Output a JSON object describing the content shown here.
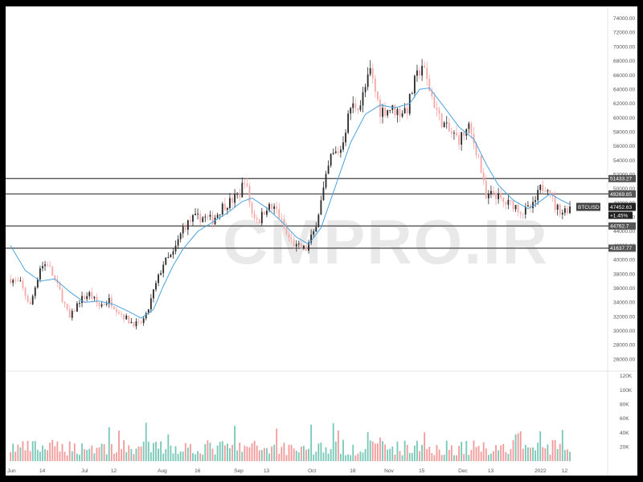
{
  "watermark": "CMPRO.IR",
  "chart_data": {
    "type": "candlestick",
    "symbol": "BTCUSD",
    "last_price": "47452.63",
    "change": "+1.45%",
    "price_ylim": [
      25000,
      75000
    ],
    "price_ticks": [
      "74000.00",
      "72000.00",
      "70000.00",
      "68000.00",
      "66000.00",
      "64000.00",
      "62000.00",
      "60000.00",
      "58000.00",
      "56000.00",
      "54000.00",
      "52000.00",
      "50000.00",
      "48000.00",
      "46000.00",
      "44000.00",
      "42000.00",
      "40000.00",
      "38000.00",
      "36000.00",
      "34000.00",
      "32000.00",
      "30000.00",
      "28000.00",
      "26000.00"
    ],
    "price_tick_values": [
      74000,
      72000,
      70000,
      68000,
      66000,
      64000,
      62000,
      60000,
      58000,
      56000,
      54000,
      52000,
      50000,
      48000,
      46000,
      44000,
      42000,
      40000,
      38000,
      36000,
      34000,
      32000,
      30000,
      28000,
      26000
    ],
    "volume_ylim": [
      0,
      120000
    ],
    "volume_ticks": [
      "120K",
      "100K",
      "80K",
      "60K",
      "40K",
      "20K"
    ],
    "volume_tick_values": [
      120000,
      100000,
      80000,
      60000,
      40000,
      20000
    ],
    "x_labels": [
      "Jun",
      "14",
      "Jul",
      "12",
      "Aug",
      "16",
      "Sep",
      "13",
      "Oct",
      "18",
      "Nov",
      "15",
      "Dec",
      "13",
      "2022",
      "12"
    ],
    "x_label_days": [
      0,
      13,
      30,
      42,
      61,
      76,
      92,
      104,
      122,
      139,
      153,
      167,
      183,
      195,
      214,
      225
    ],
    "horizontal_levels": [
      {
        "label": "51433.27",
        "value": 51433.27
      },
      {
        "label": "49269.85",
        "value": 49269.85
      },
      {
        "label": "44762.7",
        "value": 44762.7
      },
      {
        "label": "41637.77",
        "value": 41637.77
      }
    ],
    "colors": {
      "up": "#2b2b2b",
      "down": "#f4a9a9",
      "ma": "#4aa3df",
      "level": "#555555",
      "vol_up": "#79c8b8",
      "vol_down": "#f29b9b"
    },
    "close_series": [
      {
        "x": 0,
        "y": 37300
      },
      {
        "x": 4,
        "y": 36600
      },
      {
        "x": 8,
        "y": 33500
      },
      {
        "x": 12,
        "y": 39000
      },
      {
        "x": 15,
        "y": 39500
      },
      {
        "x": 20,
        "y": 35500
      },
      {
        "x": 24,
        "y": 31700
      },
      {
        "x": 28,
        "y": 34300
      },
      {
        "x": 32,
        "y": 35200
      },
      {
        "x": 36,
        "y": 33500
      },
      {
        "x": 40,
        "y": 34300
      },
      {
        "x": 44,
        "y": 32700
      },
      {
        "x": 48,
        "y": 31400
      },
      {
        "x": 52,
        "y": 30800
      },
      {
        "x": 55,
        "y": 32000
      },
      {
        "x": 58,
        "y": 35500
      },
      {
        "x": 62,
        "y": 39500
      },
      {
        "x": 66,
        "y": 40800
      },
      {
        "x": 70,
        "y": 44500
      },
      {
        "x": 74,
        "y": 45800
      },
      {
        "x": 78,
        "y": 46000
      },
      {
        "x": 82,
        "y": 45600
      },
      {
        "x": 86,
        "y": 47500
      },
      {
        "x": 90,
        "y": 48400
      },
      {
        "x": 93,
        "y": 49300
      },
      {
        "x": 95,
        "y": 51500
      },
      {
        "x": 98,
        "y": 46500
      },
      {
        "x": 101,
        "y": 45600
      },
      {
        "x": 104,
        "y": 47500
      },
      {
        "x": 108,
        "y": 47000
      },
      {
        "x": 112,
        "y": 43500
      },
      {
        "x": 116,
        "y": 41800
      },
      {
        "x": 120,
        "y": 41500
      },
      {
        "x": 123,
        "y": 43800
      },
      {
        "x": 126,
        "y": 48200
      },
      {
        "x": 130,
        "y": 54500
      },
      {
        "x": 134,
        "y": 55600
      },
      {
        "x": 138,
        "y": 61500
      },
      {
        "x": 142,
        "y": 62000
      },
      {
        "x": 146,
        "y": 66500
      },
      {
        "x": 150,
        "y": 61000
      },
      {
        "x": 154,
        "y": 61300
      },
      {
        "x": 158,
        "y": 60800
      },
      {
        "x": 161,
        "y": 61300
      },
      {
        "x": 164,
        "y": 65000
      },
      {
        "x": 167,
        "y": 67500
      },
      {
        "x": 170,
        "y": 64000
      },
      {
        "x": 174,
        "y": 60000
      },
      {
        "x": 178,
        "y": 58000
      },
      {
        "x": 182,
        "y": 57000
      },
      {
        "x": 186,
        "y": 58500
      },
      {
        "x": 190,
        "y": 54500
      },
      {
        "x": 193,
        "y": 48500
      },
      {
        "x": 196,
        "y": 49500
      },
      {
        "x": 200,
        "y": 48000
      },
      {
        "x": 204,
        "y": 47800
      },
      {
        "x": 208,
        "y": 46700
      },
      {
        "x": 212,
        "y": 47500
      },
      {
        "x": 215,
        "y": 50000
      },
      {
        "x": 218,
        "y": 50500
      },
      {
        "x": 221,
        "y": 47500
      },
      {
        "x": 224,
        "y": 46800
      },
      {
        "x": 227,
        "y": 47450
      }
    ],
    "ma_series": [
      {
        "x": 0,
        "y": 42000
      },
      {
        "x": 6,
        "y": 38500
      },
      {
        "x": 12,
        "y": 37000
      },
      {
        "x": 18,
        "y": 37300
      },
      {
        "x": 24,
        "y": 35500
      },
      {
        "x": 30,
        "y": 34000
      },
      {
        "x": 36,
        "y": 34200
      },
      {
        "x": 42,
        "y": 33700
      },
      {
        "x": 48,
        "y": 32700
      },
      {
        "x": 53,
        "y": 31800
      },
      {
        "x": 58,
        "y": 33000
      },
      {
        "x": 62,
        "y": 36300
      },
      {
        "x": 66,
        "y": 39200
      },
      {
        "x": 70,
        "y": 41500
      },
      {
        "x": 76,
        "y": 44000
      },
      {
        "x": 82,
        "y": 45300
      },
      {
        "x": 88,
        "y": 46600
      },
      {
        "x": 94,
        "y": 48200
      },
      {
        "x": 98,
        "y": 48700
      },
      {
        "x": 104,
        "y": 47300
      },
      {
        "x": 110,
        "y": 45400
      },
      {
        "x": 116,
        "y": 43200
      },
      {
        "x": 121,
        "y": 42200
      },
      {
        "x": 126,
        "y": 44500
      },
      {
        "x": 132,
        "y": 50500
      },
      {
        "x": 138,
        "y": 56500
      },
      {
        "x": 144,
        "y": 60500
      },
      {
        "x": 150,
        "y": 61800
      },
      {
        "x": 156,
        "y": 61400
      },
      {
        "x": 162,
        "y": 62000
      },
      {
        "x": 166,
        "y": 64000
      },
      {
        "x": 170,
        "y": 64200
      },
      {
        "x": 176,
        "y": 61500
      },
      {
        "x": 182,
        "y": 58700
      },
      {
        "x": 188,
        "y": 57000
      },
      {
        "x": 193,
        "y": 53500
      },
      {
        "x": 198,
        "y": 50500
      },
      {
        "x": 204,
        "y": 48400
      },
      {
        "x": 210,
        "y": 47200
      },
      {
        "x": 214,
        "y": 48000
      },
      {
        "x": 219,
        "y": 49300
      },
      {
        "x": 224,
        "y": 48300
      },
      {
        "x": 227,
        "y": 47800
      }
    ]
  }
}
